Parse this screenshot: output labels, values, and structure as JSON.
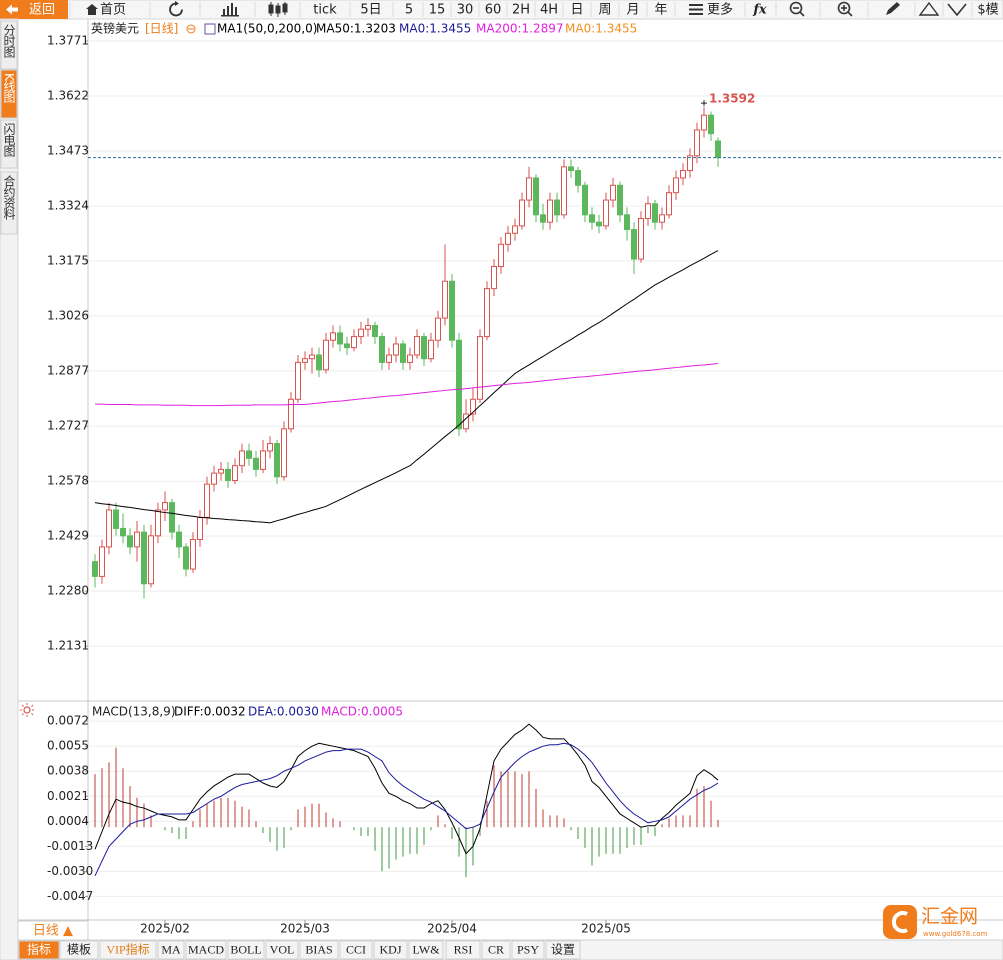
{
  "ui": {
    "toolbar": [
      "返回",
      "首页",
      "tick",
      "5日",
      "5",
      "15",
      "30",
      "60",
      "2H",
      "4H",
      "日",
      "周",
      "月",
      "年",
      "更多",
      "fx",
      "$模"
    ],
    "side_tabs": [
      "分时图",
      "K线图",
      "闪电图",
      "合约资料"
    ],
    "period": "日线 ▲",
    "bottom_tabs": [
      "指标",
      "模板",
      "VIP指标",
      "MA",
      "MACD",
      "BOLL",
      "VOL",
      "BIAS",
      "CCI",
      "KDJ",
      "LW&",
      "RSI",
      "CR",
      "PSY",
      "设置"
    ],
    "logo": "汇金网",
    "logo_url": "www.gold678.com"
  },
  "chart_data": [
    {
      "type": "candlestick",
      "title": "英镑美元",
      "subtitle": "[日线]",
      "legend": [
        {
          "text": "MA1(50,0,200,0)",
          "color": "#000000"
        },
        {
          "text": "MA50:1.3203",
          "color": "#000000"
        },
        {
          "text": "MA0:1.3455",
          "color": "#1a1a9a"
        },
        {
          "text": "MA200:1.2897",
          "color": "#e020e0"
        },
        {
          "text": "MA0:1.3455",
          "color": "#f09020"
        }
      ],
      "up_color": "#d9534f",
      "down_color": "#5cb85c",
      "open": [
        1.236,
        1.232,
        1.24,
        1.25,
        1.245,
        1.243,
        1.24,
        1.244,
        1.23,
        1.243,
        1.25,
        1.252,
        1.244,
        1.24,
        1.234,
        1.242,
        1.248,
        1.257,
        1.26,
        1.261,
        1.258,
        1.262,
        1.266,
        1.264,
        1.261,
        1.266,
        1.268,
        1.259,
        1.272,
        1.28,
        1.29,
        1.291,
        1.292,
        1.288,
        1.296,
        1.298,
        1.295,
        1.294,
        1.297,
        1.299,
        1.3,
        1.297,
        1.29,
        1.292,
        1.295,
        1.29,
        1.292,
        1.297,
        1.291,
        1.296,
        1.302,
        1.312,
        1.296,
        1.272,
        1.276,
        1.28,
        1.297,
        1.31,
        1.316,
        1.322,
        1.325,
        1.327,
        1.334,
        1.34,
        1.33,
        1.328,
        1.334,
        1.33,
        1.343,
        1.342,
        1.338,
        1.33,
        1.328,
        1.327,
        1.334,
        1.338,
        1.33,
        1.326,
        1.318,
        1.329,
        1.333,
        1.328,
        1.33,
        1.336,
        1.34,
        1.342,
        1.346,
        1.353,
        1.357,
        1.35
      ],
      "high": [
        1.238,
        1.242,
        1.252,
        1.252,
        1.249,
        1.245,
        1.247,
        1.246,
        1.246,
        1.252,
        1.255,
        1.253,
        1.246,
        1.241,
        1.244,
        1.25,
        1.259,
        1.262,
        1.263,
        1.263,
        1.264,
        1.268,
        1.268,
        1.266,
        1.269,
        1.27,
        1.269,
        1.274,
        1.282,
        1.292,
        1.293,
        1.294,
        1.294,
        1.298,
        1.3,
        1.3,
        1.297,
        1.299,
        1.301,
        1.302,
        1.301,
        1.298,
        1.294,
        1.297,
        1.296,
        1.294,
        1.299,
        1.298,
        1.298,
        1.304,
        1.322,
        1.314,
        1.298,
        1.28,
        1.283,
        1.299,
        1.312,
        1.318,
        1.324,
        1.327,
        1.329,
        1.336,
        1.343,
        1.341,
        1.333,
        1.336,
        1.336,
        1.345,
        1.345,
        1.343,
        1.339,
        1.332,
        1.33,
        1.336,
        1.34,
        1.339,
        1.332,
        1.328,
        1.331,
        1.335,
        1.334,
        1.332,
        1.338,
        1.342,
        1.344,
        1.348,
        1.355,
        1.3592,
        1.358,
        1.351
      ],
      "low": [
        1.229,
        1.23,
        1.238,
        1.243,
        1.241,
        1.238,
        1.236,
        1.226,
        1.229,
        1.241,
        1.247,
        1.242,
        1.237,
        1.232,
        1.233,
        1.24,
        1.246,
        1.255,
        1.258,
        1.256,
        1.257,
        1.26,
        1.262,
        1.259,
        1.26,
        1.264,
        1.257,
        1.258,
        1.271,
        1.279,
        1.288,
        1.287,
        1.286,
        1.287,
        1.294,
        1.293,
        1.292,
        1.293,
        1.295,
        1.297,
        1.295,
        1.288,
        1.288,
        1.29,
        1.288,
        1.288,
        1.291,
        1.289,
        1.29,
        1.294,
        1.3,
        1.294,
        1.27,
        1.271,
        1.274,
        1.279,
        1.296,
        1.308,
        1.314,
        1.32,
        1.323,
        1.326,
        1.332,
        1.328,
        1.326,
        1.326,
        1.328,
        1.329,
        1.34,
        1.336,
        1.328,
        1.326,
        1.325,
        1.326,
        1.332,
        1.328,
        1.323,
        1.314,
        1.317,
        1.327,
        1.326,
        1.326,
        1.329,
        1.334,
        1.338,
        1.34,
        1.344,
        1.351,
        1.35,
        1.343
      ],
      "close": [
        1.232,
        1.24,
        1.25,
        1.245,
        1.243,
        1.24,
        1.244,
        1.23,
        1.243,
        1.25,
        1.252,
        1.244,
        1.24,
        1.234,
        1.242,
        1.248,
        1.257,
        1.26,
        1.261,
        1.258,
        1.262,
        1.266,
        1.264,
        1.261,
        1.266,
        1.268,
        1.259,
        1.272,
        1.28,
        1.29,
        1.291,
        1.292,
        1.288,
        1.296,
        1.298,
        1.295,
        1.294,
        1.297,
        1.299,
        1.3,
        1.297,
        1.29,
        1.292,
        1.295,
        1.29,
        1.292,
        1.297,
        1.291,
        1.296,
        1.302,
        1.312,
        1.296,
        1.272,
        1.276,
        1.28,
        1.297,
        1.31,
        1.316,
        1.322,
        1.325,
        1.327,
        1.334,
        1.34,
        1.33,
        1.328,
        1.334,
        1.33,
        1.343,
        1.342,
        1.338,
        1.33,
        1.328,
        1.327,
        1.334,
        1.338,
        1.33,
        1.326,
        1.318,
        1.329,
        1.333,
        1.328,
        1.33,
        1.336,
        1.34,
        1.342,
        1.346,
        1.353,
        1.357,
        1.352,
        1.3455
      ],
      "series": [
        {
          "color": "#000000",
          "values": [
            1.252,
            1.2517,
            1.2515,
            1.2512,
            1.2509,
            1.2507,
            1.2504,
            1.2501,
            1.2499,
            1.2496,
            1.2493,
            1.2491,
            1.2488,
            1.2485,
            1.2483,
            1.248,
            1.2479,
            1.2477,
            1.2476,
            1.2474,
            1.2473,
            1.2471,
            1.247,
            1.2468,
            1.2467,
            1.2465,
            1.2471,
            1.2476,
            1.2482,
            1.2488,
            1.2493,
            1.2499,
            1.2504,
            1.251,
            1.2519,
            1.2528,
            1.2537,
            1.2547,
            1.2556,
            1.2565,
            1.2574,
            1.2583,
            1.2592,
            1.2601,
            1.2611,
            1.262,
            1.2636,
            1.2651,
            1.2667,
            1.2683,
            1.2699,
            1.2714,
            1.273,
            1.2748,
            1.2765,
            1.2783,
            1.28,
            1.2818,
            1.2835,
            1.2853,
            1.287,
            1.2882,
            1.2893,
            1.2905,
            1.2916,
            1.2928,
            1.2939,
            1.2951,
            1.2962,
            1.2974,
            1.2985,
            1.2997,
            1.3008,
            1.302,
            1.3033,
            1.3046,
            1.3059,
            1.3071,
            1.3084,
            1.3097,
            1.311,
            1.312,
            1.3131,
            1.3141,
            1.3151,
            1.3162,
            1.3172,
            1.3182,
            1.3193,
            1.3203
          ]
        },
        {
          "color": "#e020e0",
          "values": [
            1.2787,
            1.2787,
            1.2786,
            1.2786,
            1.2786,
            1.2786,
            1.2785,
            1.2785,
            1.2785,
            1.2785,
            1.2784,
            1.2784,
            1.2784,
            1.2784,
            1.2783,
            1.2783,
            1.2783,
            1.2783,
            1.2783,
            1.2784,
            1.2784,
            1.2784,
            1.2784,
            1.2785,
            1.2785,
            1.2785,
            1.2785,
            1.2785,
            1.2786,
            1.2786,
            1.2786,
            1.2788,
            1.279,
            1.2792,
            1.2794,
            1.2795,
            1.2797,
            1.2799,
            1.2801,
            1.2803,
            1.2805,
            1.2807,
            1.2809,
            1.281,
            1.2812,
            1.2814,
            1.2816,
            1.2818,
            1.282,
            1.2822,
            1.2824,
            1.2826,
            1.2827,
            1.2829,
            1.2831,
            1.2833,
            1.2835,
            1.2837,
            1.2839,
            1.2841,
            1.2843,
            1.2844,
            1.2846,
            1.2848,
            1.285,
            1.2852,
            1.2854,
            1.2856,
            1.2858,
            1.286,
            1.2861,
            1.2863,
            1.2865,
            1.2867,
            1.2869,
            1.2871,
            1.2873,
            1.2875,
            1.2877,
            1.2878,
            1.288,
            1.2882,
            1.2884,
            1.2886,
            1.2888,
            1.289,
            1.2892,
            1.2893,
            1.2895,
            1.2897
          ]
        }
      ],
      "last_line_color": "#2a6f9f",
      "ylim": [
        1.1985,
        1.3828
      ],
      "yticks": [
        1.3771,
        1.3622,
        1.3473,
        1.3324,
        1.3175,
        1.3026,
        1.2877,
        1.2727,
        1.2578,
        1.2429,
        {
          "value": 1.228,
          "label": "1.2280"
        },
        1.2131
      ],
      "grid": true
    },
    {
      "type": "macd",
      "title": "MACD(13,8,9)",
      "legend": [
        {
          "text": "DIFF:0.0032",
          "color": "#000000"
        },
        {
          "text": "DEA:0.0030",
          "color": "#1a1a9a"
        },
        {
          "text": "MACD:0.0005",
          "color": "#e020e0"
        }
      ],
      "categories": [
        null,
        null,
        null,
        null,
        null,
        null,
        null,
        null,
        null,
        null,
        "2025/02",
        null,
        null,
        null,
        null,
        null,
        null,
        null,
        null,
        null,
        null,
        null,
        null,
        null,
        null,
        null,
        null,
        null,
        null,
        null,
        "2025/03",
        null,
        null,
        null,
        null,
        null,
        null,
        null,
        null,
        null,
        null,
        null,
        null,
        null,
        null,
        null,
        null,
        null,
        null,
        null,
        null,
        "2025/04",
        null,
        null,
        null,
        null,
        null,
        null,
        null,
        null,
        null,
        null,
        null,
        null,
        null,
        null,
        null,
        null,
        null,
        null,
        null,
        null,
        null,
        "2025/05",
        null,
        null,
        null,
        null,
        null,
        null,
        null,
        null,
        null,
        null,
        null,
        null,
        null,
        null,
        null,
        null
      ],
      "series": [
        {
          "color": "#000000",
          "values": [
            -0.0015,
            -0.0003,
            0.0009,
            0.0019,
            0.0017,
            0.0016,
            0.0014,
            0.0013,
            0.0011,
            0.0009,
            0.0008,
            0.0007,
            0.0005,
            0.0005,
            0.0012,
            0.0019,
            0.0024,
            0.0028,
            0.0031,
            0.0034,
            0.0036,
            0.0036,
            0.0036,
            0.0033,
            0.003,
            0.0028,
            0.0027,
            0.0031,
            0.0039,
            0.0048,
            0.0052,
            0.0055,
            0.0057,
            0.0056,
            0.0055,
            0.0054,
            0.0053,
            0.0052,
            0.005,
            0.0048,
            0.004,
            0.003,
            0.0023,
            0.0021,
            0.0018,
            0.0016,
            0.0013,
            0.0013,
            0.0016,
            0.0018,
            0.0012,
            0.0003,
            -0.0007,
            -0.0018,
            -0.0013,
            -0.0001,
            0.0022,
            0.0045,
            0.0053,
            0.0058,
            0.0063,
            0.0066,
            0.007,
            0.0066,
            0.0061,
            0.006,
            0.006,
            0.006,
            0.0055,
            0.0049,
            0.0042,
            0.0031,
            0.0027,
            0.0021,
            0.0015,
            0.0009,
            0.0006,
            0.0003,
            0,
            0.0001,
            0.0001,
            0.0006,
            0.001,
            0.0015,
            0.0019,
            0.0023,
            0.0035,
            0.0039,
            0.0036,
            0.0032
          ]
        },
        {
          "color": "#1a1a9a",
          "values": [
            -0.0033,
            -0.0023,
            -0.0013,
            -0.0008,
            -0.0003,
            0.0002,
            0.0004,
            0.0005,
            0.0007,
            0.0009,
            0.0009,
            0.0009,
            0.0009,
            0.0009,
            0.001,
            0.0013,
            0.0016,
            0.0019,
            0.0021,
            0.0024,
            0.0027,
            0.0029,
            0.003,
            0.0031,
            0.0032,
            0.0033,
            0.0035,
            0.0038,
            0.004,
            0.0042,
            0.0045,
            0.0047,
            0.0049,
            0.0051,
            0.0052,
            0.0052,
            0.0053,
            0.0053,
            0.0053,
            0.0051,
            0.0048,
            0.0045,
            0.0037,
            0.0032,
            0.0028,
            0.0025,
            0.0022,
            0.0019,
            0.0017,
            0.0014,
            0.0011,
            0.0007,
            0.0003,
            -0.0001,
            0,
            0.0002,
            0.0013,
            0.0024,
            0.0034,
            0.0039,
            0.0044,
            0.0048,
            0.0051,
            0.0053,
            0.0055,
            0.0056,
            0.0056,
            0.0057,
            0.0056,
            0.0053,
            0.0049,
            0.0044,
            0.0037,
            0.003,
            0.0024,
            0.0018,
            0.0013,
            0.0009,
            0.0006,
            0.0003,
            0.0004,
            0.0005,
            0.0007,
            0.0011,
            0.0015,
            0.0019,
            0.0022,
            0.0025,
            0.0027,
            0.003
          ]
        }
      ],
      "histogram": {
        "values": [
          0.0036,
          0.004,
          0.0044,
          0.0054,
          0.004,
          0.0028,
          0.002,
          0.0016,
          0.0008,
          0,
          -0.0002,
          -0.0004,
          -0.0008,
          -0.0008,
          0.0004,
          0.0012,
          0.0016,
          0.0018,
          0.002,
          0.002,
          0.0018,
          0.0014,
          0.0012,
          0.0004,
          -0.0004,
          -0.001,
          -0.0016,
          -0.0014,
          -0.0002,
          0.0012,
          0.0014,
          0.0016,
          0.0016,
          0.001,
          0.0006,
          0.0004,
          0,
          -0.0002,
          -0.0006,
          -0.0006,
          -0.0016,
          -0.003,
          -0.0028,
          -0.0022,
          -0.002,
          -0.0018,
          -0.0018,
          -0.0012,
          -0.0002,
          0.0008,
          0.0002,
          -0.0008,
          -0.002,
          -0.0034,
          -0.0026,
          -0.0006,
          0.0018,
          0.0042,
          0.0038,
          0.0038,
          0.0038,
          0.0036,
          0.0038,
          0.0026,
          0.0012,
          0.0008,
          0.0008,
          0.0006,
          -0.0002,
          -0.0008,
          -0.0014,
          -0.0026,
          -0.002,
          -0.0018,
          -0.0018,
          -0.0018,
          -0.0014,
          -0.0012,
          -0.0012,
          -0.0004,
          -0.0006,
          0.0002,
          0.0006,
          0.0008,
          0.0008,
          0.0008,
          0.0026,
          0.0028,
          0.0018,
          0.0005
        ]
      },
      "up_color": "#c0392b",
      "down_color": "#3c9a3c",
      "ylim": [
        -0.0063,
        0.0085
      ],
      "yticks": [
        0.0072,
        0.0055,
        0.0038,
        0.0021,
        0.0004,
        -0.0013,
        {
          "value": -0.003,
          "label": "-0.0030"
        },
        -0.0047
      ],
      "grid": true
    }
  ]
}
